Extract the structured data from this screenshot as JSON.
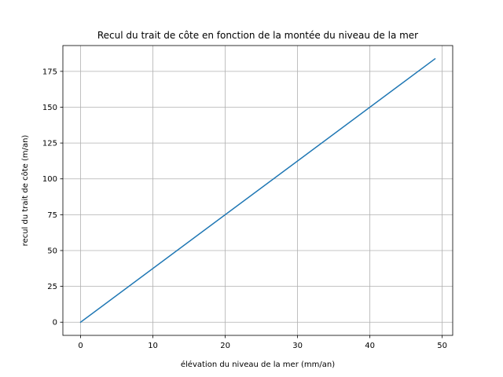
{
  "chart_data": {
    "type": "line",
    "title": "Recul du trait de côte en fonction de la montée du niveau de la mer",
    "xlabel": "élévation du niveau de la mer (mm/an)",
    "ylabel": "recul du trait de côte (m/an)",
    "xlim": [
      -2.45,
      51.45
    ],
    "ylim": [
      -9.19,
      193.0
    ],
    "xticks": [
      0,
      10,
      20,
      30,
      40,
      50
    ],
    "yticks": [
      0,
      25,
      50,
      75,
      100,
      125,
      150,
      175
    ],
    "xtick_labels": [
      "0",
      "10",
      "20",
      "30",
      "40",
      "50"
    ],
    "ytick_labels": [
      "0",
      "25",
      "50",
      "75",
      "100",
      "125",
      "150",
      "175"
    ],
    "grid": true,
    "series": [
      {
        "color": "#1f77b4",
        "x": [
          0,
          49
        ],
        "y": [
          0,
          183.75
        ]
      }
    ]
  }
}
